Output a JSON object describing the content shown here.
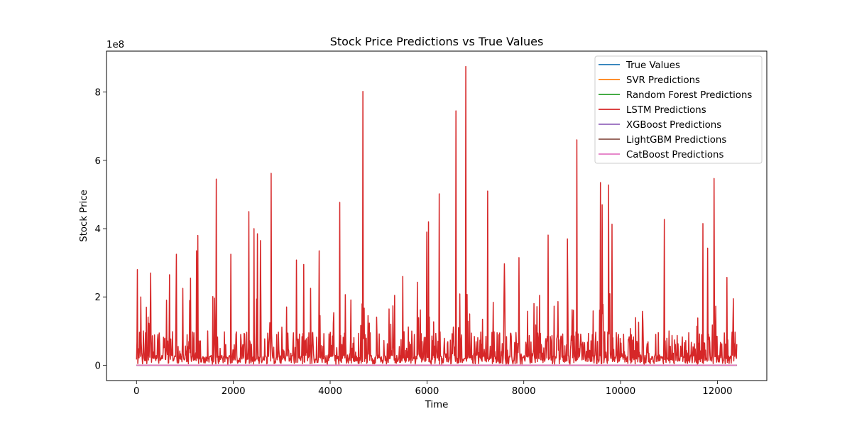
{
  "chart_data": {
    "type": "line",
    "title": "Stock Price Predictions vs True Values",
    "xlabel": "Time",
    "ylabel": "Stock Price",
    "y_offset_text": "1e8",
    "xlim": [
      -620,
      13020
    ],
    "ylim": [
      -45000000,
      920000000
    ],
    "x_ticks": [
      0,
      2000,
      4000,
      6000,
      8000,
      10000,
      12000
    ],
    "x_tick_labels": [
      "0",
      "2000",
      "4000",
      "6000",
      "8000",
      "10000",
      "12000"
    ],
    "y_ticks": [
      0,
      200000000,
      400000000,
      600000000,
      800000000
    ],
    "y_tick_labels": [
      "0",
      "2",
      "4",
      "6",
      "8"
    ],
    "grid": false,
    "legend_position": "upper right",
    "x_range": [
      0,
      12400
    ],
    "series": [
      {
        "name": "True Values",
        "color": "#1f77b4",
        "values": [
          0,
          0
        ]
      },
      {
        "name": "SVR Predictions",
        "color": "#ff7f0e",
        "values": [
          0,
          0
        ]
      },
      {
        "name": "Random Forest Predictions",
        "color": "#2ca02c",
        "values": [
          0,
          0
        ]
      },
      {
        "name": "LSTM Predictions",
        "color": "#d62728",
        "baseline_level": 30000000,
        "upper_noise_level": 70000000,
        "spikes": [
          [
            20,
            280000000
          ],
          [
            90,
            200000000
          ],
          [
            290,
            270000000
          ],
          [
            680,
            265000000
          ],
          [
            820,
            325000000
          ],
          [
            960,
            225000000
          ],
          [
            1120,
            255000000
          ],
          [
            1240,
            335000000
          ],
          [
            1270,
            380000000
          ],
          [
            1650,
            545000000
          ],
          [
            1950,
            325000000
          ],
          [
            2320,
            450000000
          ],
          [
            2430,
            400000000
          ],
          [
            2500,
            385000000
          ],
          [
            2560,
            365000000
          ],
          [
            2780,
            562000000
          ],
          [
            3300,
            308000000
          ],
          [
            3450,
            295000000
          ],
          [
            3600,
            225000000
          ],
          [
            3770,
            335000000
          ],
          [
            4200,
            477000000
          ],
          [
            4680,
            802000000
          ],
          [
            5500,
            260000000
          ],
          [
            5800,
            243000000
          ],
          [
            6000,
            390000000
          ],
          [
            6030,
            420000000
          ],
          [
            6250,
            502000000
          ],
          [
            6600,
            745000000
          ],
          [
            6800,
            875000000
          ],
          [
            7250,
            510000000
          ],
          [
            7600,
            297000000
          ],
          [
            7900,
            315000000
          ],
          [
            8500,
            381000000
          ],
          [
            8900,
            370000000
          ],
          [
            9100,
            660000000
          ],
          [
            9580,
            535000000
          ],
          [
            9620,
            470000000
          ],
          [
            9750,
            528000000
          ],
          [
            9820,
            413000000
          ],
          [
            10900,
            427000000
          ],
          [
            11700,
            415000000
          ],
          [
            11800,
            343000000
          ],
          [
            11930,
            547000000
          ],
          [
            12200,
            257000000
          ]
        ]
      },
      {
        "name": "XGBoost Predictions",
        "color": "#9467bd",
        "values": [
          0,
          0
        ]
      },
      {
        "name": "LightGBM Predictions",
        "color": "#8c564b",
        "values": [
          0,
          0
        ]
      },
      {
        "name": "CatBoost Predictions",
        "color": "#e377c2",
        "values": [
          0,
          0
        ]
      }
    ]
  }
}
